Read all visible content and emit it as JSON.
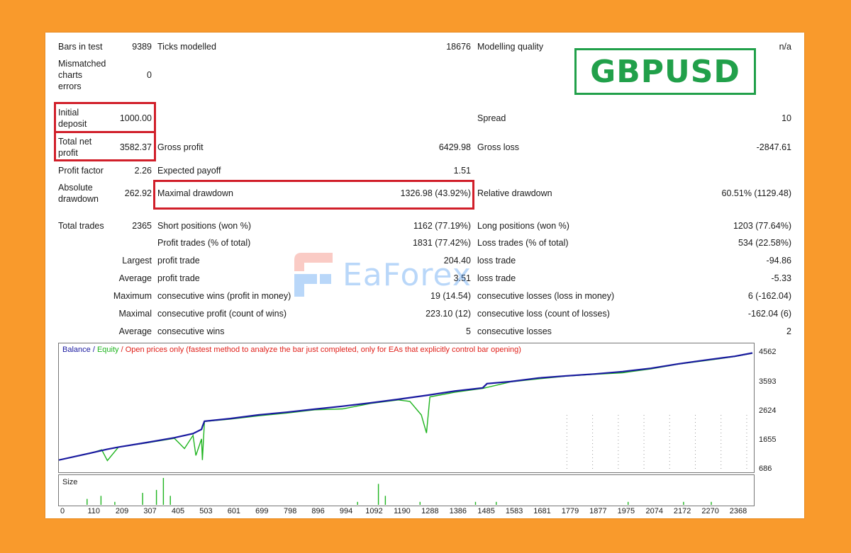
{
  "symbol": "GBPUSD",
  "watermark": "EaForex",
  "stats": {
    "bars_in_test_label": "Bars in test",
    "bars_in_test": "9389",
    "ticks_modelled_label": "Ticks modelled",
    "ticks_modelled": "18676",
    "modelling_quality_label": "Modelling quality",
    "modelling_quality": "n/a",
    "mismatched_label": [
      "Mismatched",
      "charts",
      "errors"
    ],
    "mismatched": "0",
    "initial_deposit_label": [
      "Initial",
      "deposit"
    ],
    "initial_deposit": "1000.00",
    "spread_label": "Spread",
    "spread": "10",
    "total_net_profit_label": [
      "Total net",
      "profit"
    ],
    "total_net_profit": "3582.37",
    "gross_profit_label": "Gross profit",
    "gross_profit": "6429.98",
    "gross_loss_label": "Gross loss",
    "gross_loss": "-2847.61",
    "profit_factor_label": "Profit factor",
    "profit_factor": "2.26",
    "expected_payoff_label": "Expected payoff",
    "expected_payoff": "1.51",
    "absolute_drawdown_label": [
      "Absolute",
      "drawdown"
    ],
    "absolute_drawdown": "262.92",
    "maximal_drawdown_label": "Maximal drawdown",
    "maximal_drawdown": "1326.98 (43.92%)",
    "relative_drawdown_label": "Relative drawdown",
    "relative_drawdown": "60.51% (1129.48)",
    "total_trades_label": "Total trades",
    "total_trades": "2365",
    "short_positions_label": "Short positions (won %)",
    "short_positions": "1162 (77.19%)",
    "long_positions_label": "Long positions (won %)",
    "long_positions": "1203 (77.64%)",
    "profit_trades_label": "Profit trades (% of total)",
    "profit_trades": "1831 (77.42%)",
    "loss_trades_label": "Loss trades (% of total)",
    "loss_trades": "534 (22.58%)",
    "largest_label": "Largest",
    "largest_profit_label": "profit trade",
    "largest_profit": "204.40",
    "largest_loss_label": "loss trade",
    "largest_loss": "-94.86",
    "average_label": "Average",
    "average_profit_label": "profit trade",
    "average_profit": "3.51",
    "average_loss_label": "loss trade",
    "average_loss": "-5.33",
    "maximum_label": "Maximum",
    "max_cons_wins_label": "consecutive wins (profit in money)",
    "max_cons_wins": "19 (14.54)",
    "max_cons_losses_label": "consecutive losses (loss in money)",
    "max_cons_losses": "6 (-162.04)",
    "maximal_label": "Maximal",
    "maximal_cons_profit_label": "consecutive profit (count of wins)",
    "maximal_cons_profit": "223.10 (12)",
    "maximal_cons_loss_label": "consecutive loss (count of losses)",
    "maximal_cons_loss": "-162.04 (6)",
    "average2_label": "Average",
    "avg_cons_wins_label": "consecutive wins",
    "avg_cons_wins": "5",
    "avg_cons_losses_label": "consecutive losses",
    "avg_cons_losses": "2"
  },
  "legend": {
    "balance": "Balance",
    "sep1": " / ",
    "equity": "Equity",
    "sep2": " / ",
    "note": "Open prices only (fastest method to analyze the bar just completed, only for EAs that explicitly control bar opening)"
  },
  "size_label": "Size",
  "colors": {
    "balance": "#1a1aa0",
    "equity": "#1fb41f",
    "note": "#e0201a",
    "highlight": "#d11f2a",
    "badge": "#21a04a"
  },
  "chart_data": {
    "type": "line",
    "ylim": [
      686,
      4690
    ],
    "xlim": [
      0,
      2430
    ],
    "y_ticks": [
      "4562",
      "3593",
      "2624",
      "1655",
      "686"
    ],
    "y_tick_values": [
      4562,
      3593,
      2624,
      1655,
      686
    ],
    "x_ticks": [
      "0",
      "110",
      "209",
      "307",
      "405",
      "503",
      "601",
      "699",
      "798",
      "896",
      "994",
      "1092",
      "1190",
      "1288",
      "1386",
      "1485",
      "1583",
      "1681",
      "1779",
      "1877",
      "1975",
      "2074",
      "2172",
      "2270",
      "2368"
    ],
    "series": [
      {
        "name": "Balance",
        "x": [
          0,
          110,
          170,
          209,
          307,
          405,
          470,
          500,
          503,
          510,
          601,
          699,
          798,
          896,
          994,
          1092,
          1190,
          1288,
          1386,
          1485,
          1500,
          1583,
          1681,
          1779,
          1877,
          1975,
          2074,
          2172,
          2270,
          2368,
          2430
        ],
        "values": [
          1000,
          1230,
          1360,
          1430,
          1580,
          1740,
          1880,
          2020,
          2110,
          2290,
          2380,
          2500,
          2590,
          2690,
          2790,
          2900,
          3020,
          3150,
          3290,
          3400,
          3540,
          3610,
          3730,
          3800,
          3860,
          3940,
          4050,
          4200,
          4330,
          4450,
          4560
        ]
      },
      {
        "name": "Equity",
        "x": [
          0,
          110,
          150,
          170,
          209,
          307,
          405,
          440,
          470,
          480,
          500,
          503,
          510,
          601,
          699,
          798,
          896,
          994,
          1092,
          1190,
          1230,
          1270,
          1288,
          1300,
          1386,
          1485,
          1583,
          1681,
          1779,
          1877,
          1975,
          2074,
          2172,
          2270,
          2368,
          2430
        ],
        "values": [
          1000,
          1220,
          1340,
          980,
          1430,
          1570,
          1720,
          1380,
          1820,
          1150,
          1700,
          1000,
          2280,
          2360,
          2470,
          2560,
          2670,
          2700,
          2880,
          3000,
          2950,
          2500,
          1900,
          3100,
          3250,
          3380,
          3600,
          3700,
          3790,
          3850,
          3900,
          4030,
          4190,
          4310,
          4440,
          4550
        ]
      }
    ],
    "size_values": [
      0,
      0,
      0,
      0,
      2,
      0,
      3,
      0,
      1,
      0,
      0,
      0,
      4,
      0,
      5,
      9,
      3,
      0,
      0,
      0,
      0,
      0,
      0,
      0,
      0,
      0,
      0,
      0,
      0,
      0,
      0,
      0,
      0,
      0,
      0,
      0,
      0,
      0,
      0,
      0,
      0,
      0,
      0,
      1,
      0,
      0,
      7,
      3,
      0,
      0,
      0,
      0,
      1,
      0,
      0,
      0,
      0,
      0,
      0,
      0,
      1,
      0,
      0,
      1,
      0,
      0,
      0,
      0,
      0,
      0,
      0,
      0,
      0,
      0,
      0,
      0,
      0,
      0,
      0,
      0,
      0,
      0,
      1,
      0,
      0,
      0,
      0,
      0,
      0,
      0,
      1,
      0,
      0,
      0,
      1,
      0,
      0,
      0,
      0,
      0,
      0
    ]
  }
}
